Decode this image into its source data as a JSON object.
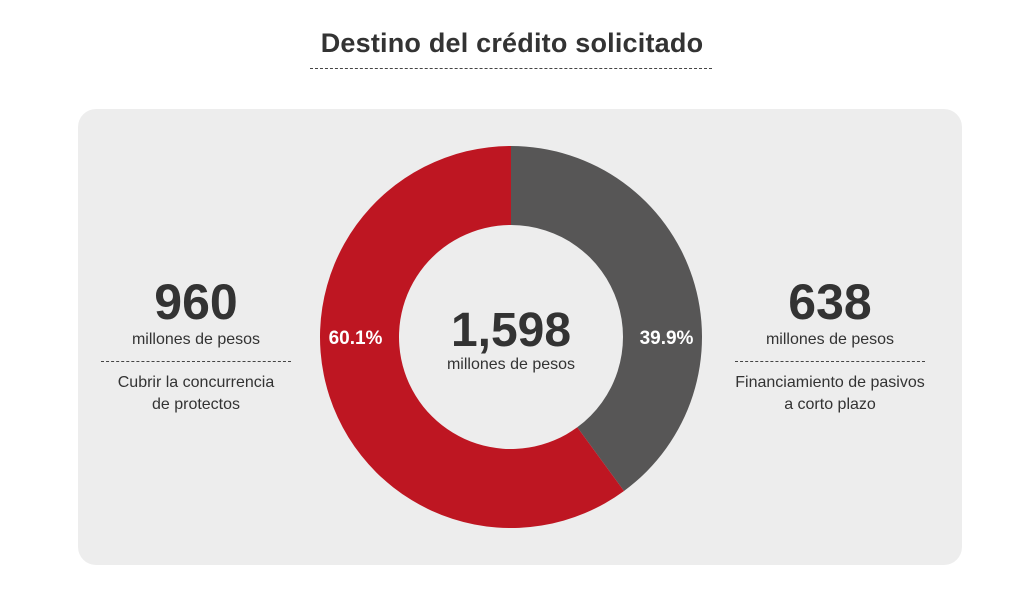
{
  "title": "Destino del crédito solicitado",
  "colors": {
    "red": "#be1622",
    "gray": "#575656",
    "panel": "#ededed",
    "text": "#333333"
  },
  "chart_data": {
    "type": "pie",
    "variant": "donut",
    "title": "Destino del crédito solicitado",
    "total": {
      "value": "1,598",
      "unit": "millones de pesos"
    },
    "slices": [
      {
        "name": "Financiamiento de pasivos a corto plazo",
        "value": 638,
        "percent": 39.9,
        "percent_label": "39.9%",
        "color": "#575656"
      },
      {
        "name": "Cubrir la concurrencia de protectos",
        "value": 960,
        "percent": 60.1,
        "percent_label": "60.1%",
        "color": "#be1622"
      }
    ]
  },
  "left": {
    "value": "960",
    "unit": "millones de pesos",
    "desc_line1": "Cubrir la concurrencia",
    "desc_line2": "de protectos"
  },
  "right": {
    "value": "638",
    "unit": "millones de pesos",
    "desc_line1": "Financiamiento de pasivos",
    "desc_line2": "a corto plazo"
  }
}
